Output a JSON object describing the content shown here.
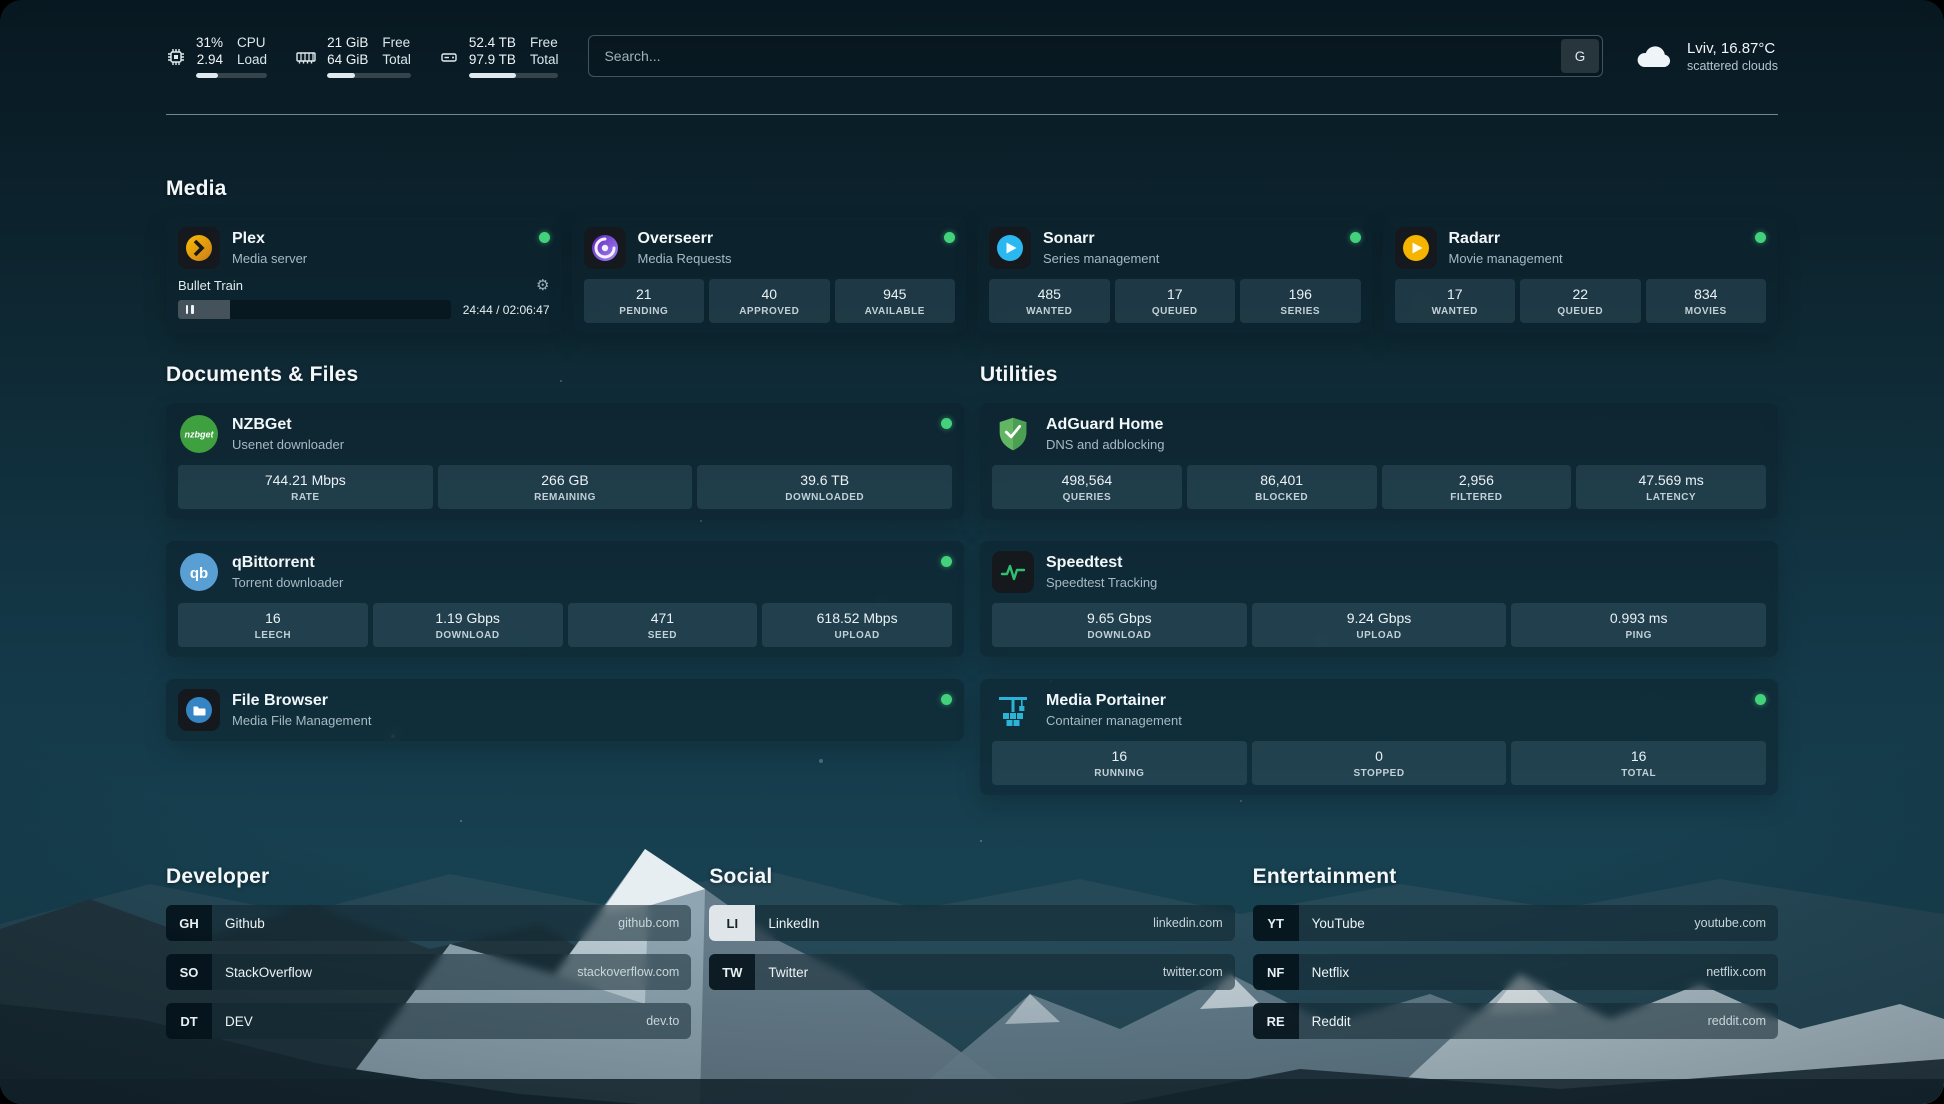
{
  "colors": {
    "status_online": "#43d17c",
    "topbar_bar_fill": "#dfe9ee",
    "plex_amber": "#e5a00d",
    "overseerr_purple": "#8b5cf6",
    "sonarr_blue": "#2bb8f0",
    "radarr_amber": "#f5b400",
    "nzbget_green": "#3fa03f",
    "qbittorrent_blue": "#5a9fd4",
    "adguard_green": "#62b563",
    "speedtest_green": "#2fbf71",
    "filebrowser_blue": "#3585c5",
    "portainer_teal": "#2cb4d6"
  },
  "icons": {
    "gear": "⚙"
  },
  "topbar": {
    "cpu": {
      "value1": "31%",
      "value2": "2.94",
      "label1": "CPU",
      "label2": "Load",
      "progress": 31
    },
    "memory": {
      "value1": "21 GiB",
      "value2": "64 GiB",
      "label1": "Free",
      "label2": "Total",
      "progress": 33
    },
    "disk": {
      "value1": "52.4 TB",
      "value2": "97.9 TB",
      "label1": "Free",
      "label2": "Total",
      "progress": 53
    },
    "search": {
      "placeholder": "Search...",
      "provider_button": "G"
    },
    "weather": {
      "title": "Lviv, 16.87°C",
      "subtitle": "scattered clouds"
    }
  },
  "sections": {
    "media": "Media",
    "documents": "Documents & Files",
    "utilities": "Utilities",
    "developer": "Developer",
    "social": "Social",
    "entertainment": "Entertainment"
  },
  "services": {
    "plex": {
      "name": "Plex",
      "desc": "Media server",
      "now_playing": "Bullet Train",
      "time": "24:44 / 02:06:47",
      "progress": 19
    },
    "overseerr": {
      "name": "Overseerr",
      "desc": "Media Requests",
      "stats": [
        {
          "v": "21",
          "l": "PENDING"
        },
        {
          "v": "40",
          "l": "APPROVED"
        },
        {
          "v": "945",
          "l": "AVAILABLE"
        }
      ]
    },
    "sonarr": {
      "name": "Sonarr",
      "desc": "Series management",
      "stats": [
        {
          "v": "485",
          "l": "WANTED"
        },
        {
          "v": "17",
          "l": "QUEUED"
        },
        {
          "v": "196",
          "l": "SERIES"
        }
      ]
    },
    "radarr": {
      "name": "Radarr",
      "desc": "Movie management",
      "stats": [
        {
          "v": "17",
          "l": "WANTED"
        },
        {
          "v": "22",
          "l": "QUEUED"
        },
        {
          "v": "834",
          "l": "MOVIES"
        }
      ]
    },
    "nzbget": {
      "name": "NZBGet",
      "desc": "Usenet downloader",
      "icon_text": "nzbget",
      "stats": [
        {
          "v": "744.21 Mbps",
          "l": "RATE"
        },
        {
          "v": "266 GB",
          "l": "REMAINING"
        },
        {
          "v": "39.6 TB",
          "l": "DOWNLOADED"
        }
      ]
    },
    "qbittorrent": {
      "name": "qBittorrent",
      "desc": "Torrent downloader",
      "icon_text": "qb",
      "stats": [
        {
          "v": "16",
          "l": "LEECH"
        },
        {
          "v": "1.19 Gbps",
          "l": "DOWNLOAD"
        },
        {
          "v": "471",
          "l": "SEED"
        },
        {
          "v": "618.52 Mbps",
          "l": "UPLOAD"
        }
      ]
    },
    "filebrowser": {
      "name": "File Browser",
      "desc": "Media File Management"
    },
    "adguard": {
      "name": "AdGuard Home",
      "desc": "DNS and adblocking",
      "stats": [
        {
          "v": "498,564",
          "l": "QUERIES"
        },
        {
          "v": "86,401",
          "l": "BLOCKED"
        },
        {
          "v": "2,956",
          "l": "FILTERED"
        },
        {
          "v": "47.569 ms",
          "l": "LATENCY"
        }
      ]
    },
    "speedtest": {
      "name": "Speedtest",
      "desc": "Speedtest Tracking",
      "stats": [
        {
          "v": "9.65 Gbps",
          "l": "DOWNLOAD"
        },
        {
          "v": "9.24 Gbps",
          "l": "UPLOAD"
        },
        {
          "v": "0.993 ms",
          "l": "PING"
        }
      ]
    },
    "portainer": {
      "name": "Media Portainer",
      "desc": "Container management",
      "stats": [
        {
          "v": "16",
          "l": "RUNNING"
        },
        {
          "v": "0",
          "l": "STOPPED"
        },
        {
          "v": "16",
          "l": "TOTAL"
        }
      ]
    }
  },
  "bookmarks": {
    "developer": [
      {
        "abbr": "GH",
        "name": "Github",
        "href": "github.com"
      },
      {
        "abbr": "SO",
        "name": "StackOverflow",
        "href": "stackoverflow.com"
      },
      {
        "abbr": "DT",
        "name": "DEV",
        "href": "dev.to"
      }
    ],
    "social": [
      {
        "abbr": "LI",
        "name": "LinkedIn",
        "href": "linkedin.com"
      },
      {
        "abbr": "TW",
        "name": "Twitter",
        "href": "twitter.com"
      }
    ],
    "entertainment": [
      {
        "abbr": "YT",
        "name": "YouTube",
        "href": "youtube.com"
      },
      {
        "abbr": "NF",
        "name": "Netflix",
        "href": "netflix.com"
      },
      {
        "abbr": "RE",
        "name": "Reddit",
        "href": "reddit.com"
      }
    ]
  }
}
